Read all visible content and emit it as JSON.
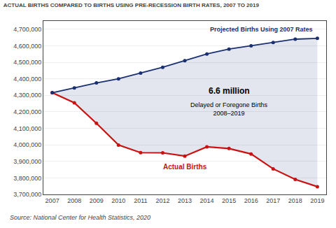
{
  "chart_data": {
    "type": "line",
    "title": "ACTUAL BIRTHS COMPARED TO BIRTHS USING PRE-RECESSION BIRTH RATES, 2007 TO 2019",
    "source": "Source: National Center for Health Statistics, 2020",
    "x": [
      2007,
      2008,
      2009,
      2010,
      2011,
      2012,
      2013,
      2014,
      2015,
      2016,
      2017,
      2018,
      2019
    ],
    "series": [
      {
        "name": "Projected Births Using 2007 Rates",
        "color": "#1a3070",
        "marker": "circle",
        "values": [
          4316000,
          4345000,
          4375000,
          4400000,
          4435000,
          4470000,
          4510000,
          4550000,
          4580000,
          4600000,
          4620000,
          4640000,
          4645000
        ]
      },
      {
        "name": "Actual Births",
        "color": "#cc1111",
        "marker": "circle",
        "values": [
          4316000,
          4255000,
          4131000,
          3999000,
          3953000,
          3952000,
          3932000,
          3988000,
          3978000,
          3945000,
          3855000,
          3791000,
          3747000
        ]
      }
    ],
    "annotations": [
      "6.6 million",
      "Delayed or Foregone Births\n2008–2019"
    ],
    "xlim": [
      2006.6,
      2019.4
    ],
    "xticks": [
      2007,
      2008,
      2009,
      2010,
      2011,
      2012,
      2013,
      2014,
      2015,
      2016,
      2017,
      2018,
      2019
    ],
    "ylim": [
      3700000,
      4750000
    ],
    "yticks": [
      {
        "value": 3700000,
        "label": "3,700,000"
      },
      {
        "value": 3800000,
        "label": "3,800,000"
      },
      {
        "value": 3900000,
        "label": "3,900,000"
      },
      {
        "value": 4000000,
        "label": "4,000,000"
      },
      {
        "value": 4100000,
        "label": "4,100,000"
      },
      {
        "value": 4200000,
        "label": "4,200,000"
      },
      {
        "value": 4300000,
        "label": "4,300,000"
      },
      {
        "value": 4400000,
        "label": "4,400,000"
      },
      {
        "value": 4500000,
        "label": "4,500,000"
      },
      {
        "value": 4600000,
        "label": "4,600,000"
      },
      {
        "value": 4700000,
        "label": "4,700,000"
      }
    ],
    "grid": true
  }
}
